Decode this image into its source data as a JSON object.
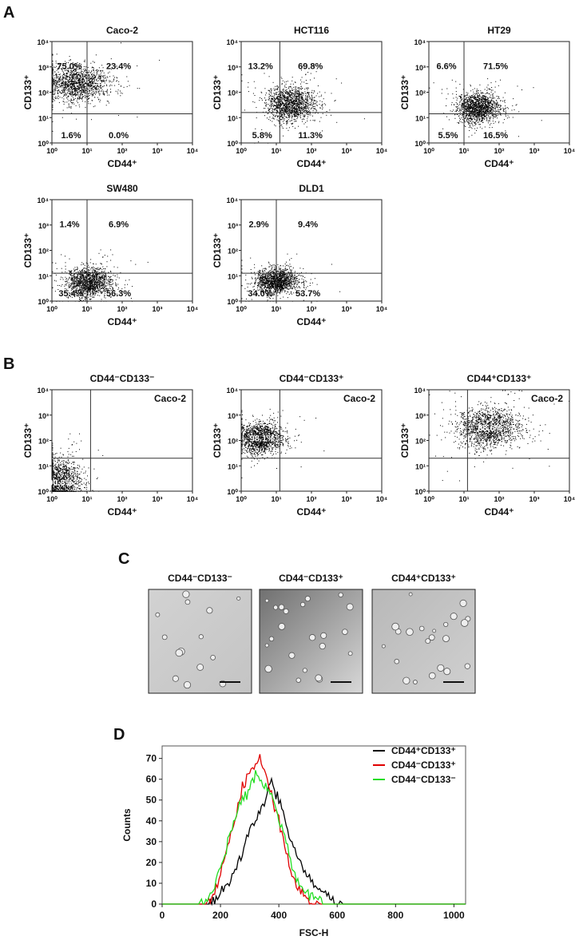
{
  "panel_letters": [
    "A",
    "B",
    "C",
    "D"
  ],
  "chart_data": [
    {
      "type": "scatter",
      "panel": "A",
      "title": "Caco-2",
      "xlabel": "CD44⁺",
      "ylabel": "CD133⁺",
      "xscale": "log",
      "xlim": [
        1,
        10000
      ],
      "ylim": [
        1,
        10000
      ],
      "ticks": [
        "10⁰",
        "10¹",
        "10²",
        "10³",
        "10⁴"
      ],
      "gate_log": [
        1.0,
        1.15
      ],
      "quadrants": {
        "UL": "75.0%",
        "UR": "23.4%",
        "LL": "1.6%",
        "LR": "0.0%"
      },
      "cluster_log": {
        "cx": 0.7,
        "cy": 2.35,
        "sx": 0.45,
        "sy": 0.35
      }
    },
    {
      "type": "scatter",
      "panel": "A",
      "title": "HCT116",
      "xlabel": "CD44⁺",
      "ylabel": "CD133⁺",
      "xscale": "log",
      "xlim": [
        1,
        10000
      ],
      "ylim": [
        1,
        10000
      ],
      "ticks": [
        "10⁰",
        "10¹",
        "10²",
        "10³",
        "10⁴"
      ],
      "gate_log": [
        1.1,
        1.2
      ],
      "quadrants": {
        "UL": "13.2%",
        "UR": "69.8%",
        "LL": "5.8%",
        "LR": "11.3%"
      },
      "cluster_log": {
        "cx": 1.4,
        "cy": 1.55,
        "sx": 0.35,
        "sy": 0.35
      }
    },
    {
      "type": "scatter",
      "panel": "A",
      "title": "HT29",
      "xlabel": "CD44⁺",
      "ylabel": "CD133⁺",
      "xscale": "log",
      "xlim": [
        1,
        10000
      ],
      "ylim": [
        1,
        10000
      ],
      "ticks": [
        "10⁰",
        "10¹",
        "10²",
        "10³",
        "10⁴"
      ],
      "gate_log": [
        1.0,
        1.15
      ],
      "quadrants": {
        "UL": "6.6%",
        "UR": "71.5%",
        "LL": "5.5%",
        "LR": "16.5%"
      },
      "cluster_log": {
        "cx": 1.4,
        "cy": 1.4,
        "sx": 0.3,
        "sy": 0.3
      }
    },
    {
      "type": "scatter",
      "panel": "A",
      "title": "SW480",
      "xlabel": "CD44⁺",
      "ylabel": "CD133⁺",
      "xscale": "log",
      "xlim": [
        1,
        10000
      ],
      "ylim": [
        1,
        10000
      ],
      "ticks": [
        "10⁰",
        "10¹",
        "10²",
        "10³",
        "10⁴"
      ],
      "gate_log": [
        1.0,
        1.1
      ],
      "quadrants": {
        "UL": "1.4%",
        "UR": "6.9%",
        "LL": "35.4%",
        "LR": "56.3%"
      },
      "cluster_log": {
        "cx": 1.05,
        "cy": 0.75,
        "sx": 0.32,
        "sy": 0.3
      }
    },
    {
      "type": "scatter",
      "panel": "A",
      "title": "DLD1",
      "xlabel": "CD44⁺",
      "ylabel": "CD133⁺",
      "xscale": "log",
      "xlim": [
        1,
        10000
      ],
      "ylim": [
        1,
        10000
      ],
      "ticks": [
        "10⁰",
        "10¹",
        "10²",
        "10³",
        "10⁴"
      ],
      "gate_log": [
        1.0,
        1.1
      ],
      "quadrants": {
        "UL": "2.9%",
        "UR": "9.4%",
        "LL": "34.0%",
        "LR": "53.7%"
      },
      "cluster_log": {
        "cx": 1.0,
        "cy": 0.8,
        "sx": 0.3,
        "sy": 0.25
      }
    },
    {
      "type": "scatter",
      "panel": "B",
      "title": "CD44⁻CD133⁻",
      "inset": "Caco-2",
      "xlabel": "CD44⁺",
      "ylabel": "CD133⁺",
      "xscale": "log",
      "xlim": [
        1,
        10000
      ],
      "ylim": [
        1,
        10000
      ],
      "ticks": [
        "10⁰",
        "10¹",
        "10²",
        "10³",
        "10⁴"
      ],
      "gate_log": [
        1.1,
        1.3
      ],
      "value": "90.8%",
      "cluster_log": {
        "cx": 0.2,
        "cy": 0.35,
        "sx": 0.3,
        "sy": 0.45
      }
    },
    {
      "type": "scatter",
      "panel": "B",
      "title": "CD44⁻CD133⁺",
      "inset": "Caco-2",
      "xlabel": "CD44⁺",
      "ylabel": "CD133⁺",
      "xscale": "log",
      "xlim": [
        1,
        10000
      ],
      "ylim": [
        1,
        10000
      ],
      "ticks": [
        "10⁰",
        "10¹",
        "10²",
        "10³",
        "10⁴"
      ],
      "gate_log": [
        1.1,
        1.3
      ],
      "value": "98.1%",
      "cluster_log": {
        "cx": 0.55,
        "cy": 2.1,
        "sx": 0.3,
        "sy": 0.3
      }
    },
    {
      "type": "scatter",
      "panel": "B",
      "title": "CD44⁺CD133⁺",
      "inset": "Caco-2",
      "xlabel": "CD44⁺",
      "ylabel": "CD133⁺",
      "xscale": "log",
      "xlim": [
        1,
        10000
      ],
      "ylim": [
        1,
        10000
      ],
      "ticks": [
        "10⁰",
        "10¹",
        "10²",
        "10³",
        "10⁴"
      ],
      "gate_log": [
        1.1,
        1.3
      ],
      "value": "88.6%",
      "cluster_log": {
        "cx": 1.7,
        "cy": 2.5,
        "sx": 0.45,
        "sy": 0.4
      }
    },
    {
      "type": "line",
      "panel": "D",
      "xlabel": "FSC-H",
      "ylabel": "Counts",
      "xlim": [
        0,
        1040
      ],
      "ylim": [
        0,
        76
      ],
      "xticks": [
        0,
        200,
        400,
        600,
        800,
        1000
      ],
      "yticks": [
        0,
        10,
        20,
        30,
        40,
        50,
        60,
        70
      ],
      "x": [
        125,
        150,
        175,
        200,
        225,
        250,
        275,
        300,
        325,
        350,
        375,
        400,
        425,
        450,
        475,
        500,
        525,
        550,
        575,
        600,
        625,
        650
      ],
      "series": [
        {
          "name": "CD44⁺CD133⁺",
          "color": "#000000",
          "values": [
            0,
            0,
            1,
            4,
            9,
            16,
            25,
            35,
            42,
            50,
            58,
            50,
            38,
            28,
            19,
            13,
            8,
            6,
            3,
            1,
            0,
            0
          ]
        },
        {
          "name": "CD44⁻CD133⁺",
          "color": "#e00000",
          "values": [
            0,
            0,
            4,
            14,
            28,
            40,
            55,
            64,
            70,
            66,
            52,
            40,
            25,
            12,
            5,
            2,
            1,
            0,
            0,
            0,
            0,
            0
          ]
        },
        {
          "name": "CD44⁻CD133⁻",
          "color": "#22dd22",
          "values": [
            0,
            1,
            6,
            18,
            30,
            42,
            50,
            58,
            62,
            58,
            52,
            42,
            30,
            16,
            8,
            4,
            2,
            0,
            0,
            0,
            0,
            0
          ]
        }
      ],
      "legend": "top-right"
    }
  ],
  "micrographs": [
    {
      "title": "CD44⁻CD133⁻",
      "cells": 14,
      "tone": "light"
    },
    {
      "title": "CD44⁻CD133⁺",
      "cells": 22,
      "tone": "dark-left"
    },
    {
      "title": "CD44⁺CD133⁺",
      "cells": 22,
      "tone": "medium"
    }
  ]
}
